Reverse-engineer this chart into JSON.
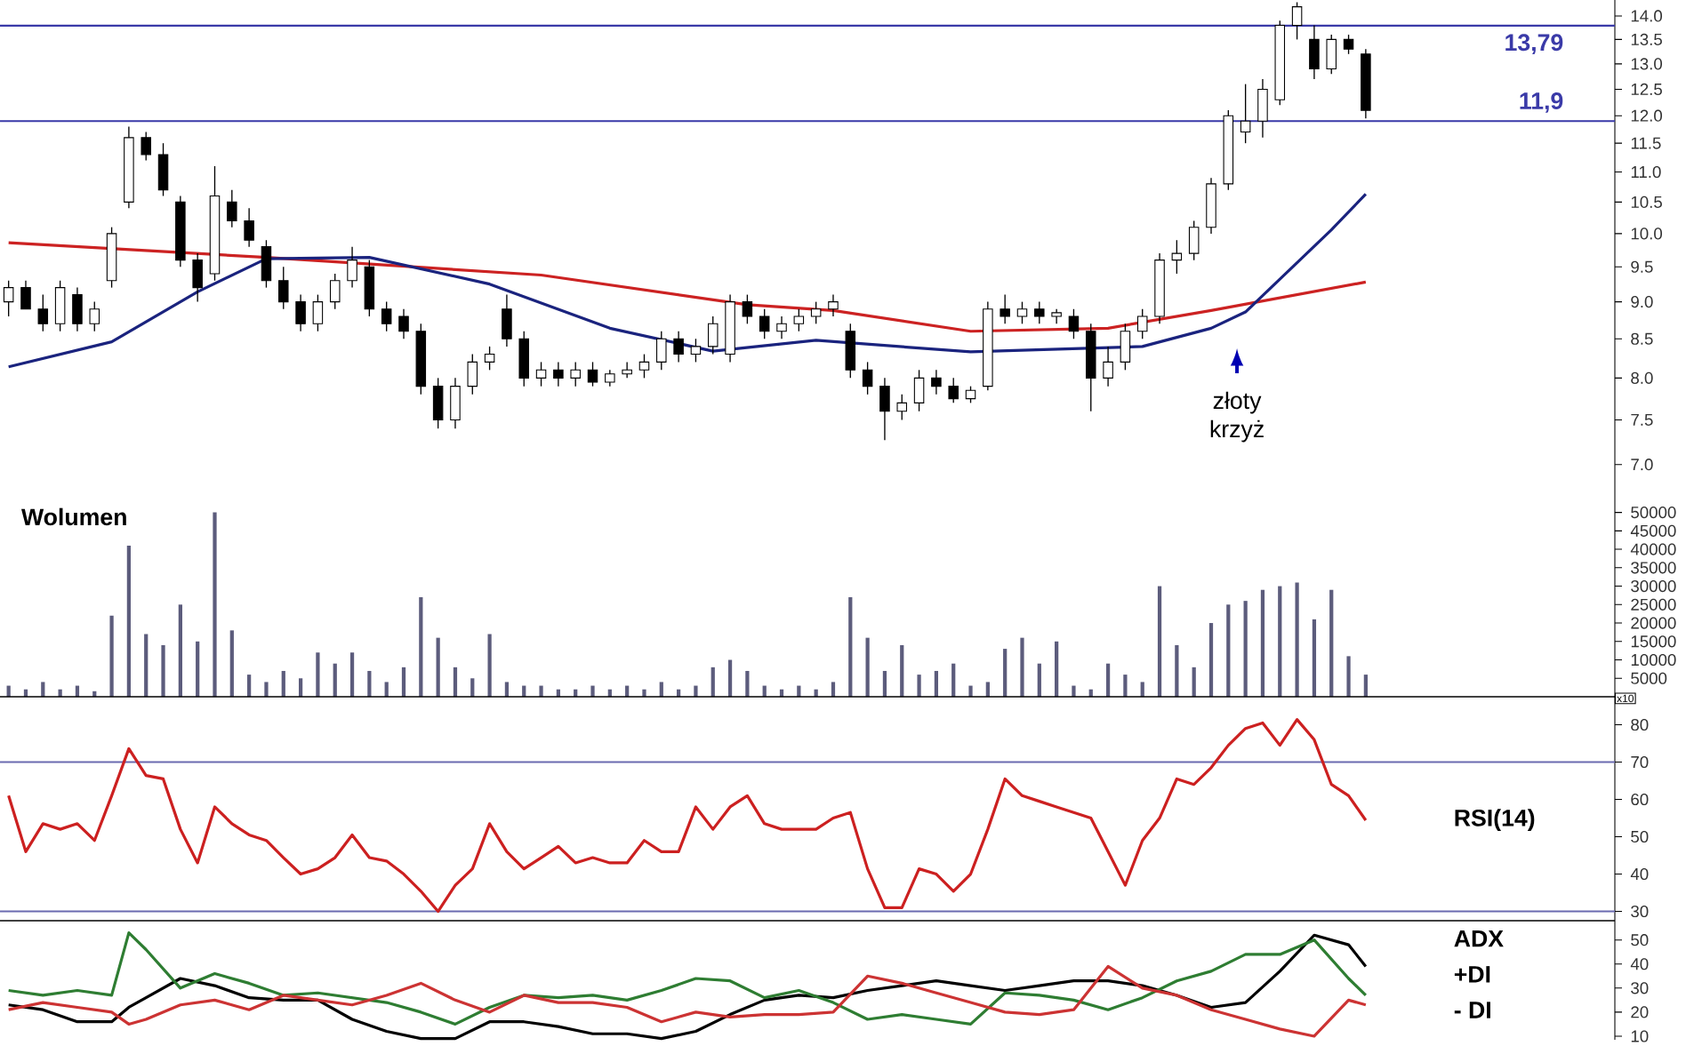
{
  "chart_data": [
    {
      "type": "candlestick",
      "categories": [
        null,
        null,
        null,
        null,
        null,
        null,
        null,
        null,
        null,
        null,
        null,
        null,
        null,
        null,
        null,
        null,
        null,
        null,
        null,
        null,
        null,
        null,
        null,
        null,
        null,
        null,
        null,
        null,
        null,
        null,
        null,
        null,
        null,
        null,
        null,
        null,
        null,
        null,
        null,
        null,
        null,
        null,
        null,
        null,
        null,
        null,
        null,
        null,
        null,
        null,
        null,
        null,
        null,
        null,
        null,
        null,
        null,
        null,
        null,
        null,
        null,
        null,
        null,
        null,
        null,
        null,
        null,
        null,
        null,
        null,
        null,
        null,
        null,
        null,
        null,
        null,
        null,
        null,
        null,
        null,
        null,
        null,
        null,
        null,
        null,
        null,
        null,
        null,
        null,
        null,
        null,
        null,
        null,
        null
      ],
      "ohlc": [
        [
          9.0,
          9.3,
          8.8,
          9.2
        ],
        [
          9.2,
          9.3,
          8.9,
          8.9
        ],
        [
          8.9,
          9.1,
          8.6,
          8.7
        ],
        [
          8.7,
          9.3,
          8.6,
          9.2
        ],
        [
          9.1,
          9.2,
          8.6,
          8.7
        ],
        [
          8.7,
          9.0,
          8.6,
          8.9
        ],
        [
          9.3,
          10.1,
          9.2,
          10.0
        ],
        [
          10.5,
          11.8,
          10.4,
          11.6
        ],
        [
          11.6,
          11.7,
          11.2,
          11.3
        ],
        [
          11.3,
          11.5,
          10.6,
          10.7
        ],
        [
          10.5,
          10.6,
          9.5,
          9.6
        ],
        [
          9.6,
          9.7,
          9.0,
          9.2
        ],
        [
          9.4,
          11.1,
          9.3,
          10.6
        ],
        [
          10.5,
          10.7,
          10.1,
          10.2
        ],
        [
          10.2,
          10.4,
          9.8,
          9.9
        ],
        [
          9.8,
          9.9,
          9.2,
          9.3
        ],
        [
          9.3,
          9.5,
          8.9,
          9.0
        ],
        [
          9.0,
          9.1,
          8.6,
          8.7
        ],
        [
          8.7,
          9.1,
          8.6,
          9.0
        ],
        [
          9.0,
          9.4,
          8.9,
          9.3
        ],
        [
          9.3,
          9.8,
          9.2,
          9.6
        ],
        [
          9.5,
          9.6,
          8.8,
          8.9
        ],
        [
          8.9,
          9.0,
          8.6,
          8.7
        ],
        [
          8.8,
          8.9,
          8.5,
          8.6
        ],
        [
          8.6,
          8.7,
          7.8,
          7.9
        ],
        [
          7.9,
          8.0,
          7.4,
          7.5
        ],
        [
          7.5,
          8.0,
          7.4,
          7.9
        ],
        [
          7.9,
          8.3,
          7.8,
          8.2
        ],
        [
          8.2,
          8.4,
          8.1,
          8.3
        ],
        [
          8.9,
          9.1,
          8.4,
          8.5
        ],
        [
          8.5,
          8.6,
          7.9,
          8.0
        ],
        [
          8.0,
          8.2,
          7.9,
          8.1
        ],
        [
          8.1,
          8.2,
          7.9,
          8.0
        ],
        [
          8.0,
          8.2,
          7.9,
          8.1
        ],
        [
          8.1,
          8.2,
          7.9,
          7.95
        ],
        [
          7.95,
          8.1,
          7.9,
          8.05
        ],
        [
          8.05,
          8.2,
          8.0,
          8.1
        ],
        [
          8.1,
          8.3,
          8.0,
          8.2
        ],
        [
          8.2,
          8.6,
          8.1,
          8.5
        ],
        [
          8.5,
          8.6,
          8.2,
          8.3
        ],
        [
          8.3,
          8.5,
          8.2,
          8.4
        ],
        [
          8.4,
          8.8,
          8.3,
          8.7
        ],
        [
          8.3,
          9.1,
          8.2,
          9.0
        ],
        [
          9.0,
          9.1,
          8.7,
          8.8
        ],
        [
          8.8,
          8.9,
          8.5,
          8.6
        ],
        [
          8.6,
          8.8,
          8.5,
          8.7
        ],
        [
          8.7,
          8.9,
          8.6,
          8.8
        ],
        [
          8.8,
          9.0,
          8.7,
          8.9
        ],
        [
          8.9,
          9.1,
          8.8,
          9.0
        ],
        [
          8.6,
          8.7,
          8.0,
          8.1
        ],
        [
          8.1,
          8.2,
          7.8,
          7.9
        ],
        [
          7.9,
          8.0,
          7.27,
          7.6
        ],
        [
          7.6,
          7.8,
          7.5,
          7.7
        ],
        [
          7.7,
          8.1,
          7.6,
          8.0
        ],
        [
          8.0,
          8.1,
          7.8,
          7.9
        ],
        [
          7.9,
          8.0,
          7.7,
          7.75
        ],
        [
          7.75,
          7.9,
          7.7,
          7.85
        ],
        [
          7.9,
          9.0,
          7.85,
          8.9
        ],
        [
          8.9,
          9.1,
          8.7,
          8.8
        ],
        [
          8.8,
          9.0,
          8.7,
          8.9
        ],
        [
          8.9,
          9.0,
          8.7,
          8.8
        ],
        [
          8.8,
          8.9,
          8.7,
          8.85
        ],
        [
          8.8,
          8.9,
          8.5,
          8.6
        ],
        [
          8.6,
          8.7,
          7.6,
          8.0
        ],
        [
          8.0,
          8.4,
          7.9,
          8.2
        ],
        [
          8.2,
          8.7,
          8.1,
          8.6
        ],
        [
          8.6,
          8.9,
          8.5,
          8.8
        ],
        [
          8.8,
          9.7,
          8.7,
          9.6
        ],
        [
          9.6,
          9.9,
          9.4,
          9.7
        ],
        [
          9.7,
          10.2,
          9.6,
          10.1
        ],
        [
          10.1,
          10.9,
          10.0,
          10.8
        ],
        [
          10.8,
          12.1,
          10.7,
          12.0
        ],
        [
          11.7,
          12.6,
          11.5,
          11.9
        ],
        [
          11.9,
          12.7,
          11.6,
          12.5
        ],
        [
          12.3,
          13.9,
          12.2,
          13.8
        ],
        [
          13.8,
          14.3,
          13.5,
          14.2
        ],
        [
          13.5,
          13.8,
          12.7,
          12.9
        ],
        [
          12.9,
          13.6,
          12.8,
          13.5
        ],
        [
          13.5,
          13.6,
          13.2,
          13.3
        ],
        [
          13.2,
          13.3,
          11.95,
          12.1
        ],
        null,
        null,
        null,
        null,
        null,
        null,
        null,
        null,
        null,
        null,
        null,
        null,
        null,
        null
      ],
      "series": [
        {
          "type": "line",
          "color": "#cc2222",
          "values": [
            9.86,
            null,
            null,
            null,
            null,
            null,
            null,
            null,
            null,
            null,
            null,
            null,
            null,
            null,
            null,
            9.64,
            null,
            null,
            null,
            null,
            null,
            null,
            null,
            null,
            null,
            null,
            null,
            null,
            null,
            null,
            null,
            9.38,
            null,
            null,
            null,
            null,
            null,
            null,
            null,
            null,
            null,
            null,
            null,
            8.96,
            null,
            null,
            null,
            null,
            8.88,
            null,
            null,
            null,
            null,
            null,
            null,
            null,
            8.6,
            null,
            null,
            null,
            null,
            null,
            null,
            null,
            8.64,
            null,
            null,
            null,
            null,
            null,
            8.88,
            null,
            null,
            null,
            null,
            null,
            null,
            null,
            null,
            9.28,
            null,
            null,
            null,
            null,
            null,
            null,
            null,
            null,
            null,
            null,
            null,
            null,
            null,
            null
          ]
        },
        {
          "type": "line",
          "color": "#1a237e",
          "values": [
            8.14,
            null,
            null,
            null,
            null,
            null,
            8.46,
            null,
            null,
            null,
            null,
            9.14,
            null,
            null,
            null,
            9.62,
            null,
            null,
            null,
            null,
            null,
            9.64,
            null,
            null,
            null,
            null,
            null,
            null,
            9.25,
            null,
            null,
            null,
            null,
            null,
            null,
            8.64,
            null,
            null,
            null,
            null,
            null,
            8.34,
            null,
            null,
            null,
            null,
            null,
            8.48,
            null,
            null,
            null,
            null,
            null,
            null,
            null,
            null,
            8.33,
            null,
            null,
            null,
            null,
            null,
            null,
            null,
            null,
            null,
            8.4,
            null,
            null,
            null,
            8.64,
            null,
            8.86,
            null,
            null,
            null,
            null,
            10.06,
            null,
            10.63,
            null,
            null,
            null,
            null,
            null,
            null,
            null,
            null,
            null,
            null,
            null,
            null,
            null,
            null
          ]
        }
      ],
      "log": true,
      "ylim": [
        6.65,
        14.35
      ],
      "yticks": [
        {
          "value": 7,
          "label": "7.0"
        },
        {
          "value": 7.5,
          "label": "7.5"
        },
        {
          "value": 8,
          "label": "8.0"
        },
        {
          "value": 8.5,
          "label": "8.5"
        },
        {
          "value": 9,
          "label": "9.0"
        },
        {
          "value": 9.5,
          "label": "9.5"
        },
        {
          "value": 10,
          "label": "10.0"
        },
        {
          "value": 10.5,
          "label": "10.5"
        },
        {
          "value": 11,
          "label": "11.0"
        },
        {
          "value": 11.5,
          "label": "11.5"
        },
        {
          "value": 12,
          "label": "12.0"
        },
        {
          "value": 12.5,
          "label": "12.5"
        },
        {
          "value": 13,
          "label": "13.0"
        },
        {
          "value": 13.5,
          "label": "13.5"
        },
        {
          "value": 14,
          "label": "14.0"
        }
      ],
      "tick_labels": "y",
      "ref_lines": [
        {
          "axis": "y",
          "value": 11.9,
          "label": "11,9",
          "color": "#3a3aa8"
        },
        {
          "axis": "y",
          "value": 13.79,
          "label": "13,79",
          "color": "#3a3aa8"
        }
      ],
      "annotations": [
        "złoty krzyż"
      ]
    },
    {
      "type": "bar",
      "title": "Wolumen",
      "categories": [
        null,
        null,
        null,
        null,
        null,
        null,
        null,
        null,
        null,
        null,
        null,
        null,
        null,
        null,
        null,
        null,
        null,
        null,
        null,
        null,
        null,
        null,
        null,
        null,
        null,
        null,
        null,
        null,
        null,
        null,
        null,
        null,
        null,
        null,
        null,
        null,
        null,
        null,
        null,
        null,
        null,
        null,
        null,
        null,
        null,
        null,
        null,
        null,
        null,
        null,
        null,
        null,
        null,
        null,
        null,
        null,
        null,
        null,
        null,
        null,
        null,
        null,
        null,
        null,
        null,
        null,
        null,
        null,
        null,
        null,
        null,
        null,
        null,
        null,
        null,
        null,
        null,
        null,
        null,
        null,
        null,
        null,
        null,
        null,
        null,
        null,
        null,
        null,
        null,
        null,
        null,
        null,
        null,
        null
      ],
      "values": [
        3000,
        2000,
        4000,
        2000,
        3000,
        1500,
        22000,
        41000,
        17000,
        14000,
        25000,
        15000,
        50000,
        18000,
        6000,
        4000,
        7000,
        5000,
        12000,
        9000,
        12000,
        7000,
        4000,
        8000,
        27000,
        16000,
        8000,
        5000,
        17000,
        4000,
        3000,
        3000,
        2000,
        2000,
        3000,
        2000,
        3000,
        2000,
        4000,
        2000,
        3000,
        8000,
        10000,
        7000,
        3000,
        2000,
        3000,
        2000,
        4000,
        27000,
        16000,
        7000,
        14000,
        6000,
        7000,
        9000,
        3000,
        4000,
        13000,
        16000,
        9000,
        15000,
        3000,
        2000,
        9000,
        6000,
        4000,
        30000,
        14000,
        8000,
        20000,
        25000,
        26000,
        29000,
        30000,
        31000,
        21000,
        29000,
        11000,
        6000,
        null,
        null,
        null,
        null,
        null,
        null,
        null,
        null,
        null,
        null,
        null,
        null,
        null,
        null
      ],
      "color": "#5c5c7c",
      "ylim": [
        0,
        54000
      ],
      "yticks": [
        5000,
        10000,
        15000,
        20000,
        25000,
        30000,
        35000,
        40000,
        45000,
        50000
      ],
      "tick_labels": "y",
      "annotations": [
        "x10"
      ]
    },
    {
      "type": "line",
      "categories": [
        null,
        null,
        null,
        null,
        null,
        null,
        null,
        null,
        null,
        null,
        null,
        null,
        null,
        null,
        null,
        null,
        null,
        null,
        null,
        null,
        null,
        null,
        null,
        null,
        null,
        null,
        null,
        null,
        null,
        null,
        null,
        null,
        null,
        null,
        null,
        null,
        null,
        null,
        null,
        null,
        null,
        null,
        null,
        null,
        null,
        null,
        null,
        null,
        null,
        null,
        null,
        null,
        null,
        null,
        null,
        null,
        null,
        null,
        null,
        null,
        null,
        null,
        null,
        null,
        null,
        null,
        null,
        null,
        null,
        null,
        null,
        null,
        null,
        null,
        null,
        null,
        null,
        null,
        null,
        null,
        null,
        null,
        null,
        null,
        null,
        null,
        null,
        null,
        null,
        null,
        null,
        null,
        null,
        null
      ],
      "series": [
        {
          "name": "RSI(14)",
          "color": "#cc2020",
          "values": [
            61,
            46,
            53.5,
            52,
            53.5,
            49,
            61,
            73.6,
            66.4,
            65.5,
            52,
            43,
            58,
            53.5,
            50.5,
            49,
            44.4,
            40,
            41.4,
            44.4,
            50.5,
            44.4,
            43.5,
            40,
            35.4,
            30,
            37,
            41.4,
            53.5,
            46,
            41.4,
            44.4,
            47.4,
            43,
            44.4,
            43,
            43,
            49,
            46,
            46,
            58,
            52,
            58,
            61,
            53.5,
            52,
            52,
            52,
            55,
            56.5,
            41.4,
            31,
            31,
            41.4,
            40,
            35.4,
            40,
            52,
            65.5,
            61,
            59.5,
            58,
            56.5,
            55,
            46,
            37,
            49,
            55,
            65.5,
            64,
            68.5,
            74.5,
            79,
            80.5,
            74.5,
            81.4,
            76,
            64,
            61,
            54.4,
            null,
            null,
            null,
            null,
            null,
            null,
            null,
            null,
            null,
            null,
            null,
            null,
            null,
            null
          ]
        }
      ],
      "ylim": [
        27.5,
        87.5
      ],
      "yticks": [
        30,
        40,
        50,
        60,
        70,
        80
      ],
      "tick_labels": "y",
      "ref_lines": [
        {
          "axis": "y",
          "value": 70,
          "color": "#6a6ab0"
        },
        {
          "axis": "y",
          "value": 30,
          "color": "#6a6ab0"
        }
      ]
    },
    {
      "type": "line",
      "categories": [
        null,
        null,
        null,
        null,
        null,
        null,
        null,
        null,
        null,
        null,
        null,
        null,
        null,
        null,
        null,
        null,
        null,
        null,
        null,
        null,
        null,
        null,
        null,
        null,
        null,
        null,
        null,
        null,
        null,
        null,
        null,
        null,
        null,
        null,
        null,
        null,
        null,
        null,
        null,
        null,
        null,
        null,
        null,
        null,
        null,
        null,
        null,
        null,
        null,
        null,
        null,
        null,
        null,
        null,
        null,
        null,
        null,
        null,
        null,
        null,
        null,
        null,
        null,
        null,
        null,
        null,
        null,
        null,
        null,
        null,
        null,
        null,
        null,
        null,
        null,
        null,
        null,
        null,
        null,
        null,
        null,
        null,
        null,
        null,
        null,
        null,
        null,
        null,
        null,
        null,
        null,
        null,
        null,
        null
      ],
      "series": [
        {
          "name": "ADX",
          "color": "#000000",
          "values": [
            23,
            null,
            21,
            null,
            16,
            null,
            16,
            22,
            26,
            null,
            34,
            null,
            31,
            null,
            26,
            null,
            25,
            null,
            25,
            null,
            17,
            null,
            12,
            null,
            9,
            null,
            9,
            null,
            16,
            null,
            16,
            null,
            14,
            null,
            11,
            null,
            11,
            null,
            9,
            null,
            12,
            null,
            19,
            null,
            25,
            null,
            27,
            null,
            26,
            null,
            29,
            null,
            31,
            null,
            33,
            null,
            31,
            null,
            29,
            null,
            31,
            null,
            33,
            null,
            33,
            null,
            31,
            null,
            27,
            null,
            22,
            null,
            24,
            null,
            37,
            null,
            52,
            null,
            48,
            39,
            null,
            null,
            null,
            null,
            null,
            null,
            null,
            null,
            null,
            null,
            null,
            null,
            null,
            null
          ]
        },
        {
          "name": "+DI",
          "color": "#2e7d32",
          "values": [
            29,
            null,
            27,
            null,
            29,
            null,
            27,
            53,
            46,
            null,
            30,
            null,
            36,
            null,
            32,
            null,
            27,
            null,
            28,
            null,
            26,
            null,
            24,
            null,
            20,
            null,
            15,
            null,
            22,
            null,
            27,
            null,
            26,
            null,
            27,
            null,
            25,
            null,
            29,
            null,
            34,
            null,
            33,
            null,
            26,
            null,
            29,
            null,
            24,
            null,
            17,
            null,
            19,
            null,
            17,
            null,
            15,
            null,
            28,
            null,
            27,
            null,
            25,
            null,
            21,
            null,
            26,
            null,
            33,
            null,
            37,
            null,
            44,
            null,
            44,
            null,
            50,
            null,
            34,
            27,
            null,
            null,
            null,
            null,
            null,
            null,
            null,
            null,
            null,
            null,
            null,
            null,
            null,
            null
          ]
        },
        {
          "name": "- DI",
          "color": "#cc3333",
          "values": [
            21,
            null,
            24,
            null,
            22,
            null,
            20,
            15,
            17,
            null,
            23,
            null,
            25,
            null,
            21,
            null,
            27,
            null,
            25,
            null,
            23,
            null,
            27,
            null,
            32,
            null,
            25,
            null,
            20,
            null,
            27,
            null,
            24,
            null,
            24,
            null,
            22,
            null,
            16,
            null,
            20,
            null,
            18,
            null,
            19,
            null,
            19,
            null,
            20,
            null,
            35,
            null,
            32,
            null,
            28,
            null,
            24,
            null,
            20,
            null,
            19,
            null,
            21,
            null,
            39,
            null,
            30,
            null,
            27,
            null,
            21,
            null,
            17,
            null,
            13,
            null,
            10,
            null,
            25,
            23,
            null,
            null,
            null,
            null,
            null,
            null,
            null,
            null,
            null,
            null,
            null,
            null,
            null,
            null
          ]
        }
      ],
      "ylim": [
        8.5,
        58
      ],
      "yticks": [
        10,
        20,
        30,
        40,
        50
      ],
      "tick_labels": "y"
    }
  ]
}
